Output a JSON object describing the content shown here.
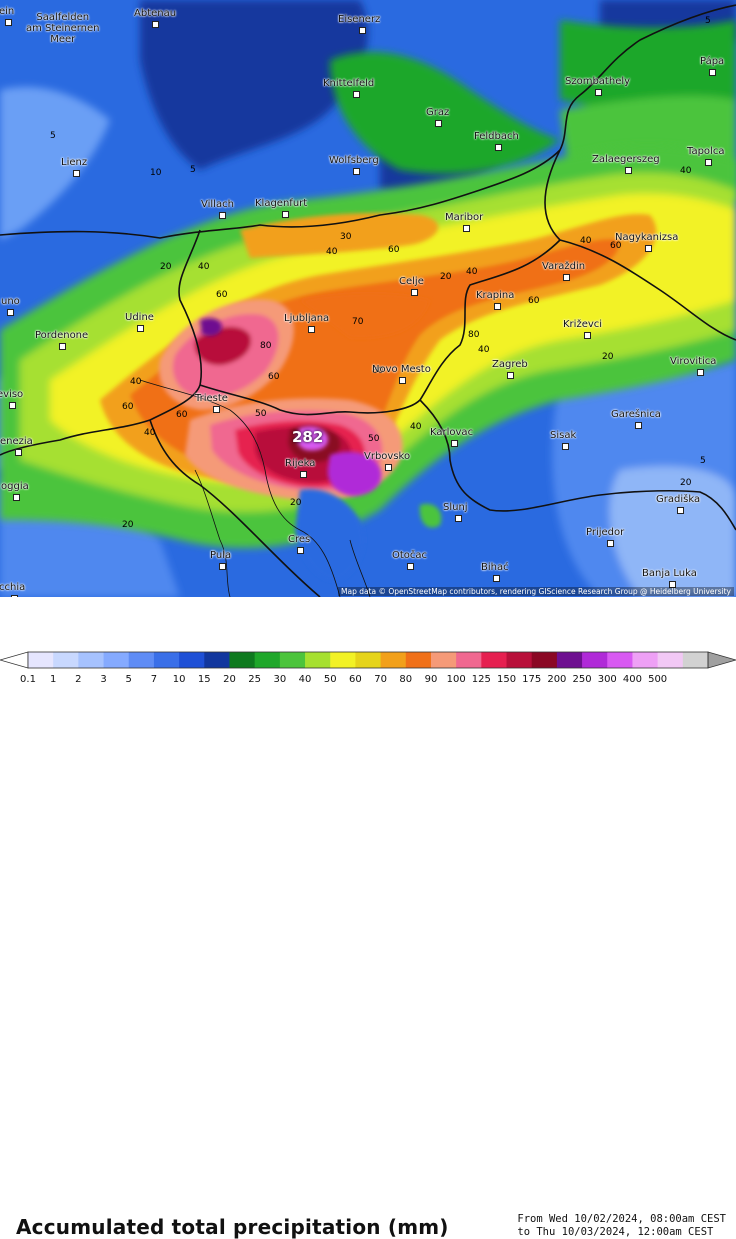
{
  "map": {
    "peak_label": "282",
    "attribution": "Map data © OpenStreetMap contributors, rendering GIScience Research Group @ Heidelberg University",
    "cities": [
      {
        "name": "Saalfelden am Steinernen Meer",
        "line1": "Saalfelden",
        "line2": "am Steinernen",
        "line3": "Meer"
      },
      {
        "name": "Abtenau"
      },
      {
        "name": "Eisenerz"
      },
      {
        "name": "Knittelfeld"
      },
      {
        "name": "Szombathely"
      },
      {
        "name": "Pápa"
      },
      {
        "name": "Graz"
      },
      {
        "name": "Feldbach"
      },
      {
        "name": "Lienz"
      },
      {
        "name": "Wolfsberg"
      },
      {
        "name": "Zalaegerszeg"
      },
      {
        "name": "Tapolca"
      },
      {
        "name": "Villach"
      },
      {
        "name": "Klagenfurt"
      },
      {
        "name": "Maribor"
      },
      {
        "name": "Nagykanizsa"
      },
      {
        "name": "Celje"
      },
      {
        "name": "Varaždin"
      },
      {
        "name": "Udine"
      },
      {
        "name": "Ljubljana"
      },
      {
        "name": "Krapina"
      },
      {
        "name": "Križevci"
      },
      {
        "name": "Pordenone"
      },
      {
        "name": "Novo Mesto"
      },
      {
        "name": "Zagreb"
      },
      {
        "name": "Virovitica"
      },
      {
        "name": "Trieste"
      },
      {
        "name": "Karlovac"
      },
      {
        "name": "Garešnica"
      },
      {
        "name": "Sisak"
      },
      {
        "name": "Rijeka"
      },
      {
        "name": "Vrbovsko"
      },
      {
        "name": "Slunj"
      },
      {
        "name": "Gradiška"
      },
      {
        "name": "Prijedor"
      },
      {
        "name": "Pula"
      },
      {
        "name": "Cres"
      },
      {
        "name": "Otočac"
      },
      {
        "name": "Bihać"
      },
      {
        "name": "Banja Luka"
      },
      {
        "name": "eviso"
      },
      {
        "name": "enezia"
      },
      {
        "name": "oggia"
      },
      {
        "name": "uno"
      },
      {
        "name": "ein"
      },
      {
        "name": "cchia"
      }
    ],
    "contour_labels": [
      "5",
      "20",
      "40",
      "60",
      "80",
      "10",
      "30",
      "90",
      "50",
      "70"
    ]
  },
  "footer": {
    "title": "Accumulated total precipitation (mm)",
    "range_from": "From Wed 10/02/2024, 08:00am CEST",
    "range_to": "to Thu 10/03/2024, 12:00am CEST"
  },
  "colorbar": {
    "ticks": [
      "0.1",
      "1",
      "2",
      "3",
      "5",
      "7",
      "10",
      "15",
      "20",
      "25",
      "30",
      "40",
      "50",
      "60",
      "70",
      "80",
      "90",
      "100",
      "125",
      "150",
      "175",
      "200",
      "250",
      "300",
      "400",
      "500"
    ],
    "colors": [
      "#e6e6ff",
      "#c8d8ff",
      "#a6c2ff",
      "#85aaff",
      "#5f8cf5",
      "#3a6fe8",
      "#1f50d6",
      "#12379e",
      "#0f7a1f",
      "#1fa72a",
      "#4cc43c",
      "#a6e030",
      "#f2f225",
      "#e6d41a",
      "#f2a01a",
      "#f07018",
      "#f59a78",
      "#f06890",
      "#e62050",
      "#b8103a",
      "#8a0824",
      "#6e1090",
      "#b02ad8",
      "#d85af2",
      "#eea0f5",
      "#f2c8f5",
      "#d2d2d2"
    ]
  }
}
